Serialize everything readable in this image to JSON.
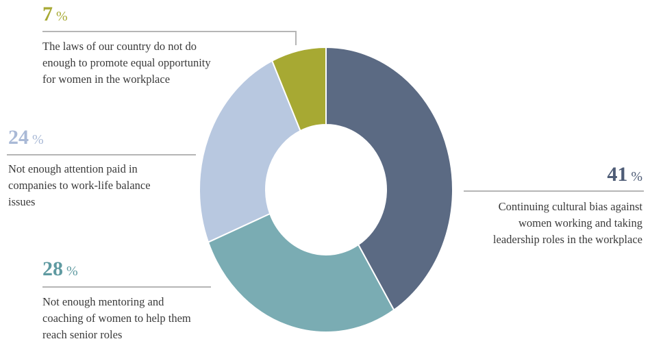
{
  "chart_data": {
    "type": "pie",
    "donut": true,
    "legend": "none",
    "slices": [
      {
        "value": 41,
        "label_pct": "41",
        "label_sym": "%",
        "color": "#5b6a83",
        "desc_lines": [
          "Continuing cultural bias against",
          "women working and taking",
          "leadership roles in the workplace"
        ]
      },
      {
        "value": 28,
        "label_pct": "28",
        "label_sym": "%",
        "color": "#7aacb3",
        "desc_lines": [
          "Not enough mentoring and",
          "coaching of women to help them",
          "reach senior roles"
        ]
      },
      {
        "value": 24,
        "label_pct": "24",
        "label_sym": "%",
        "color": "#b8c8e0",
        "desc_lines": [
          "Not enough attention paid in",
          "companies to work-life balance",
          "issues"
        ]
      },
      {
        "value": 7,
        "label_pct": "7",
        "label_sym": "%",
        "color": "#a7a933",
        "desc_lines": [
          "The laws of our country do not do",
          "enough to promote equal opportunity",
          "for women in the workplace"
        ]
      }
    ]
  }
}
